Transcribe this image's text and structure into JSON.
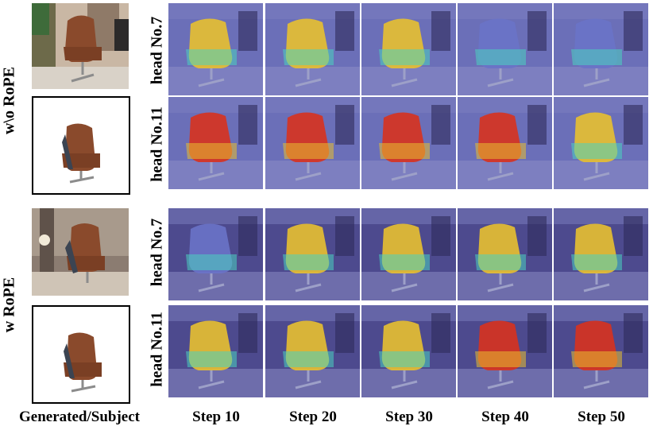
{
  "groups": [
    {
      "label": "w\\o RoPE",
      "rows": [
        "head No.7",
        "head No.11"
      ]
    },
    {
      "label": "w RoPE",
      "rows": [
        "head No.7",
        "head No.11"
      ]
    }
  ],
  "columns": [
    "Step 10",
    "Step 20",
    "Step 30",
    "Step 40",
    "Step 50"
  ],
  "left_column_label": "Generated/Subject",
  "colors": {
    "woRope_bg": "#6b6fb8",
    "wRope_bg": "#4d4a8e",
    "chair": "#8a4a2c",
    "heat_hot": "#d8321e",
    "heat_warm": "#e8c030",
    "heat_cool": "#4ad1c0"
  }
}
